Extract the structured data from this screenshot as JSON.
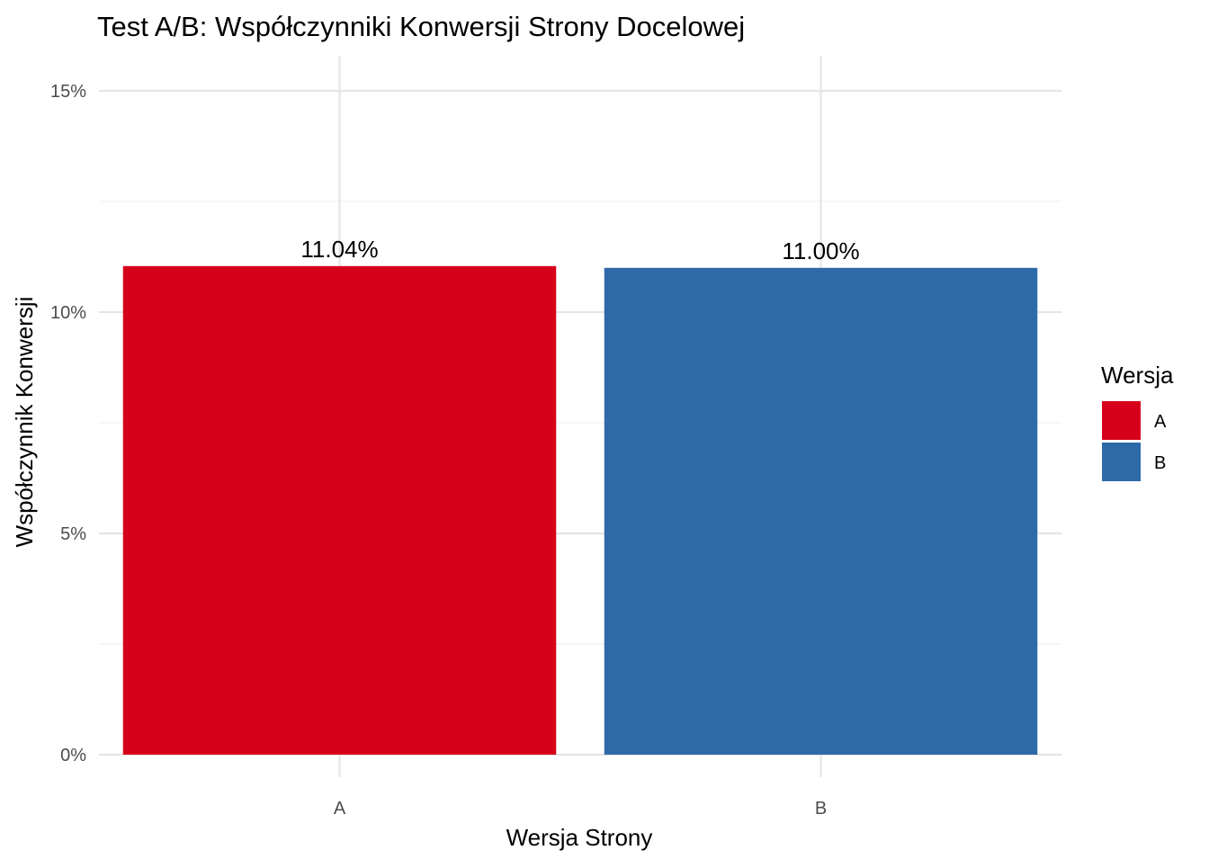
{
  "chart_data": {
    "type": "bar",
    "title": "Test A/B: Współczynniki Konwersji Strony Docelowej",
    "xlabel": "Wersja Strony",
    "ylabel": "Współczynnik Konwersji",
    "categories": [
      "A",
      "B"
    ],
    "values": [
      11.04,
      11.0
    ],
    "data_labels": [
      "11.04%",
      "11.00%"
    ],
    "colors": [
      "#D7001A",
      "#2E6AA8"
    ],
    "ylim": [
      0,
      15.75
    ],
    "y_ticks": [
      0,
      5,
      10,
      15
    ],
    "y_tick_labels": [
      "0%",
      "5%",
      "10%",
      "15%"
    ],
    "y_minor_ticks": [
      2.5,
      7.5,
      12.5
    ],
    "grid": true,
    "legend": {
      "title": "Wersja",
      "position": "right",
      "entries": [
        {
          "label": "A",
          "color": "#D7001A"
        },
        {
          "label": "B",
          "color": "#2E6AA8"
        }
      ]
    }
  }
}
